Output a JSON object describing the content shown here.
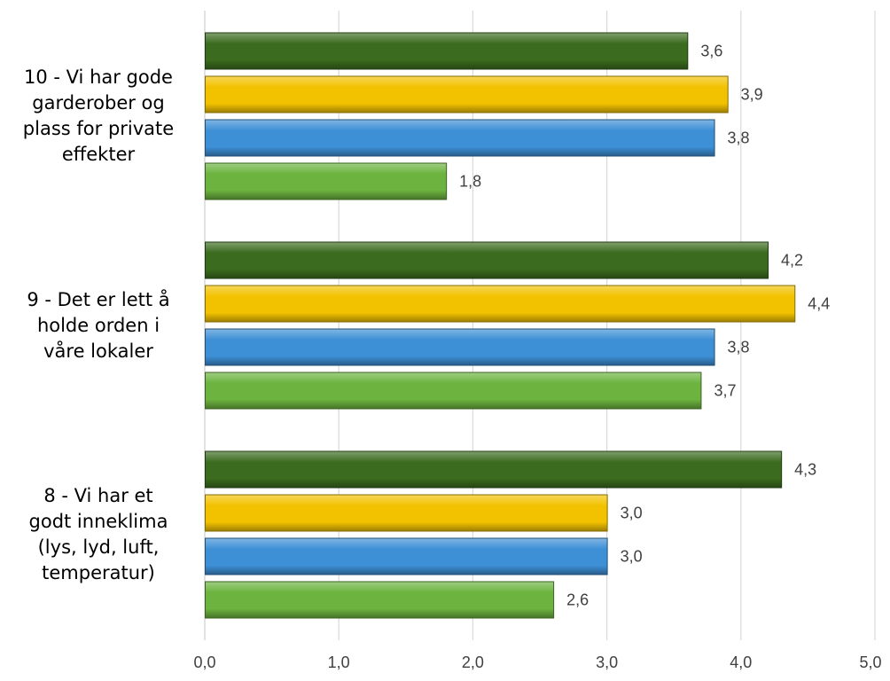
{
  "colors": {
    "series": [
      "#3b6b1e",
      "#f2c200",
      "#3d8fd6",
      "#6cb33f"
    ],
    "grid": "#d9d9d9",
    "text": "#404040"
  },
  "chart_data": {
    "type": "bar",
    "orientation": "horizontal",
    "categories": [
      "10 - Vi har gode garderober og plass for private effekter",
      "9 - Det er lett å holde orden i våre lokaler",
      "8 - Vi har et godt inneklima (lys, lyd, luft, temperatur)"
    ],
    "category_label_lines": [
      [
        "10 - Vi har gode",
        "garderober og",
        "plass for private",
        "effekter"
      ],
      [
        "9 - Det er lett å",
        "holde orden i",
        "våre lokaler"
      ],
      [
        "8 - Vi har et",
        "godt inneklima",
        "(lys, lyd, luft,",
        "temperatur)"
      ]
    ],
    "series": [
      {
        "values": [
          3.6,
          4.2,
          4.3
        ],
        "labels": [
          "3,6",
          "4,2",
          "4,3"
        ]
      },
      {
        "values": [
          3.9,
          4.4,
          3.0
        ],
        "labels": [
          "3,9",
          "4,4",
          "3,0"
        ]
      },
      {
        "values": [
          3.8,
          3.8,
          3.0
        ],
        "labels": [
          "3,8",
          "3,8",
          "3,0"
        ]
      },
      {
        "values": [
          1.8,
          3.7,
          2.6
        ],
        "labels": [
          "1,8",
          "3,7",
          "2,6"
        ]
      }
    ],
    "xlim": [
      0,
      5
    ],
    "x_ticks": [
      "0,0",
      "1,0",
      "2,0",
      "3,0",
      "4,0",
      "5,0"
    ],
    "grid": true,
    "legend": "none",
    "title": "",
    "xlabel": "",
    "ylabel": ""
  }
}
